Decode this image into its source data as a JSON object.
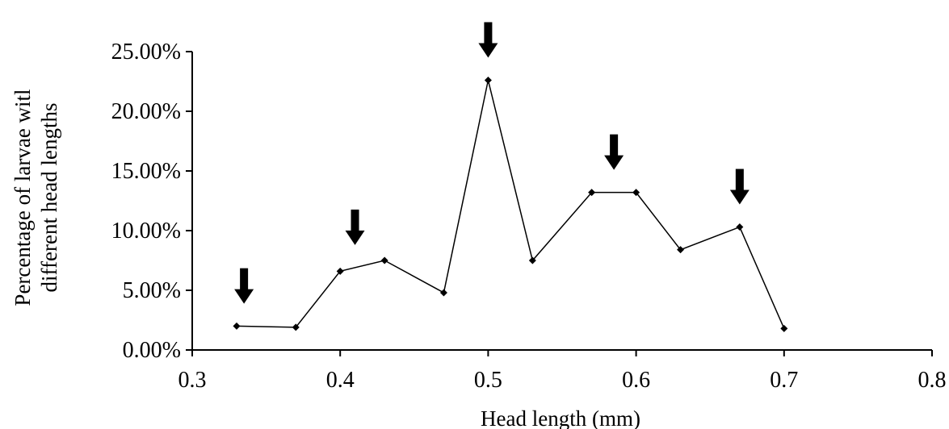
{
  "chart_data": {
    "type": "line",
    "title": "",
    "xlabel": "Head length (mm)",
    "ylabel": [
      "Percentage of larvae witl",
      "different head lengths"
    ],
    "xlim": [
      0.3,
      0.8
    ],
    "ylim": [
      0,
      0.25
    ],
    "x_ticks": [
      "0.3",
      "0.4",
      "0.5",
      "0.6",
      "0.7",
      "0.8"
    ],
    "y_ticks": [
      "0.00%",
      "5.00%",
      "10.00%",
      "15.00%",
      "20.00%",
      "25.00%"
    ],
    "grid": false,
    "legend": "none",
    "series": [
      {
        "x": [
          0.33,
          0.37,
          0.4,
          0.43,
          0.47,
          0.5,
          0.53,
          0.57,
          0.6,
          0.63,
          0.67,
          0.7
        ],
        "y": [
          0.02,
          0.019,
          0.066,
          0.075,
          0.048,
          0.226,
          0.075,
          0.132,
          0.132,
          0.084,
          0.103,
          0.018
        ]
      }
    ],
    "annotations": {
      "arrows_down_at_x": [
        0.335,
        0.41,
        0.5,
        0.585,
        0.67
      ]
    },
    "colors": {
      "line": "#000000",
      "marker": "#000000",
      "arrow": "#000000"
    }
  }
}
